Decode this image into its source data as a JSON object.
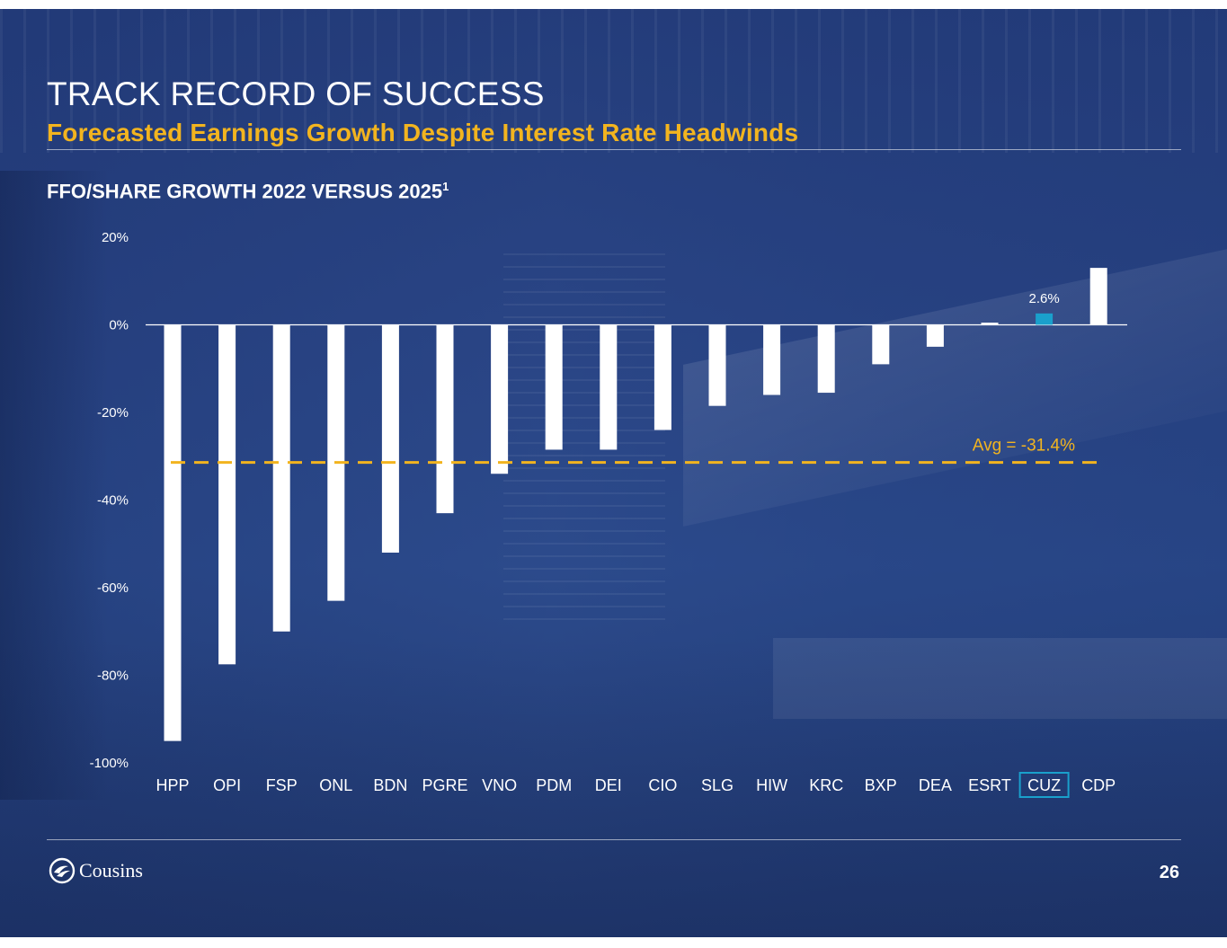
{
  "slide": {
    "title": "TRACK RECORD OF SUCCESS",
    "subtitle": "Forecasted Earnings Growth Despite Interest Rate Headwinds",
    "chart_heading": "FFO/SHARE GROWTH 2022 VERSUS 2025",
    "chart_heading_footnote": "1",
    "logo_text": "Cousins",
    "page_number": "26"
  },
  "colors": {
    "bar": "#ffffff",
    "highlight_bar": "#1aa0cc",
    "average_line": "#f2b41f",
    "highlight_box": "#1aa0cc"
  },
  "chart_data": {
    "type": "bar",
    "title": "FFO/SHARE GROWTH 2022 VERSUS 2025",
    "categories": [
      "HPP",
      "OPI",
      "FSP",
      "ONL",
      "BDN",
      "PGRE",
      "VNO",
      "PDM",
      "DEI",
      "CIO",
      "SLG",
      "HIW",
      "KRC",
      "BXP",
      "DEA",
      "ESRT",
      "CUZ",
      "CDP"
    ],
    "values": [
      -95.0,
      -77.5,
      -70.0,
      -63.0,
      -52.0,
      -43.0,
      -34.0,
      -28.5,
      -28.5,
      -24.0,
      -18.5,
      -16.0,
      -15.5,
      -9.0,
      -5.0,
      0.5,
      2.6,
      13.0
    ],
    "highlight_category": "CUZ",
    "data_labels": [
      {
        "category": "CUZ",
        "text": "2.6%"
      }
    ],
    "average": {
      "value": -31.4,
      "label": "Avg = -31.4%"
    },
    "ylim": [
      -100,
      20
    ],
    "yticks": [
      20,
      0,
      -20,
      -40,
      -60,
      -80,
      -100
    ],
    "ytick_labels": [
      "20%",
      "0%",
      "-20%",
      "-40%",
      "-60%",
      "-80%",
      "-100%"
    ],
    "xlabel": "",
    "ylabel": "",
    "grid": false
  }
}
